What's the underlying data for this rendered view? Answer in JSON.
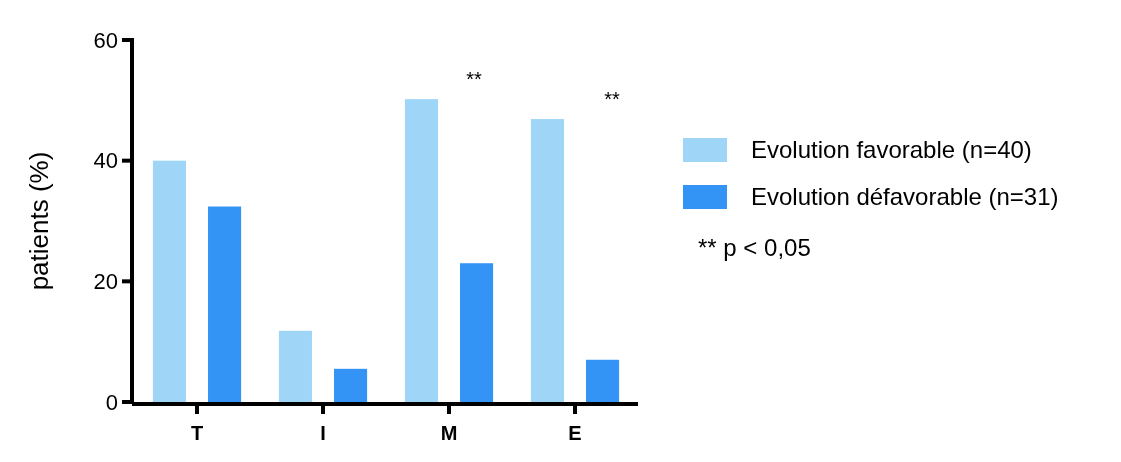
{
  "chart_data": {
    "type": "bar",
    "ylabel": "patients (%)",
    "categories": [
      "T",
      "I",
      "M",
      "E"
    ],
    "series": [
      {
        "name": "Evolution favorable (n=40)",
        "color": "#9fd6f7",
        "values": [
          40,
          11.8,
          50.2,
          46.9
        ]
      },
      {
        "name": "Evolution défavorable (n=31)",
        "color": "#3394f5",
        "values": [
          32.4,
          5.5,
          23,
          7
        ]
      }
    ],
    "ylim": [
      0,
      60
    ],
    "yticks": [
      0,
      20,
      40,
      60
    ],
    "grid": false,
    "legend": "right",
    "annotations": [
      "**",
      "**",
      "** p < 0,05"
    ]
  }
}
